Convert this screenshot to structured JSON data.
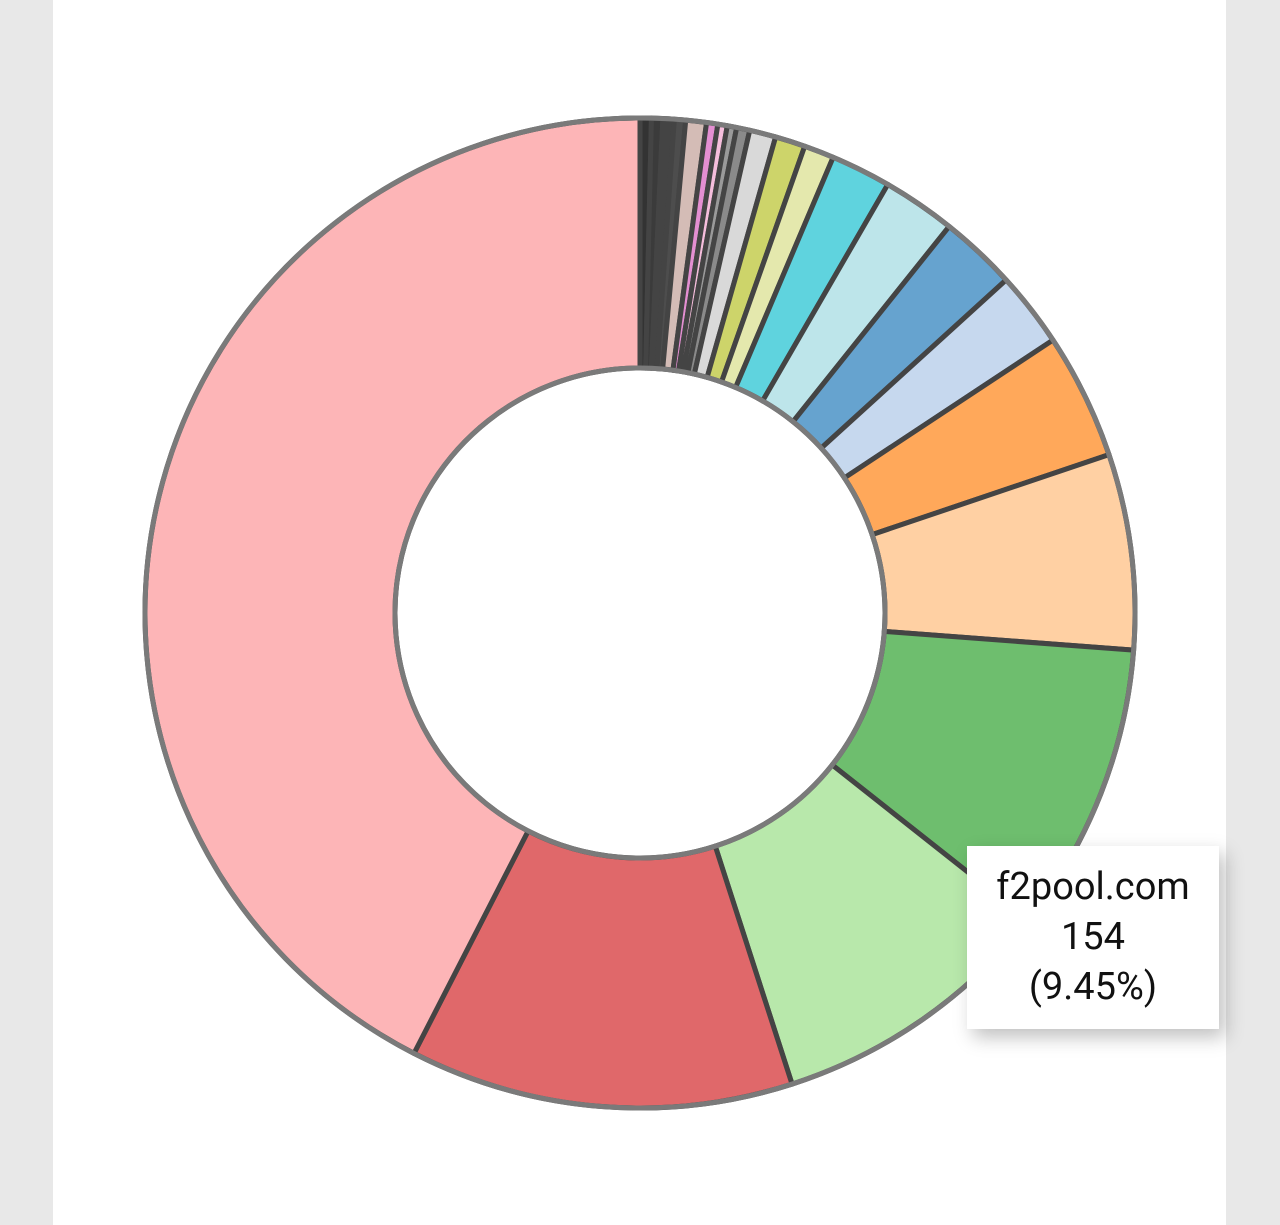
{
  "chart_data": {
    "type": "donut",
    "categories": [
      null,
      null,
      null,
      null,
      null,
      null,
      null,
      null,
      null,
      null,
      null,
      null,
      null,
      null,
      null,
      null,
      null,
      null,
      null,
      null,
      "f2pool.com",
      null,
      null,
      null
    ],
    "values": [
      6,
      6,
      6,
      6,
      11,
      6,
      5,
      5,
      7,
      14,
      16,
      16,
      32,
      39,
      41,
      40,
      67,
      104,
      0,
      0,
      154,
      153,
      204,
      692
    ],
    "colors": [
      "#333333",
      "#3b3b3b",
      "#444444",
      "#4d4d4d",
      "#d4bcb6",
      "#e48fd2",
      "#f5bedc",
      "#9a9a9a",
      "#8a8a8a",
      "#d9d9d9",
      "#cdd46a",
      "#e4e8ad",
      "#5fd3de",
      "#bde5ea",
      "#66a3cf",
      "#c6d8ee",
      "#ffa85a",
      "#ffd0a3",
      "#6ebe6e",
      "#6ebe6e",
      "#6ebe6e",
      "#b8e8ab",
      "#e0686a",
      "#fdb5b7"
    ],
    "tooltip": {
      "percent": {
        "value": 9.45,
        "label": "(9.45%)"
      }
    }
  }
}
